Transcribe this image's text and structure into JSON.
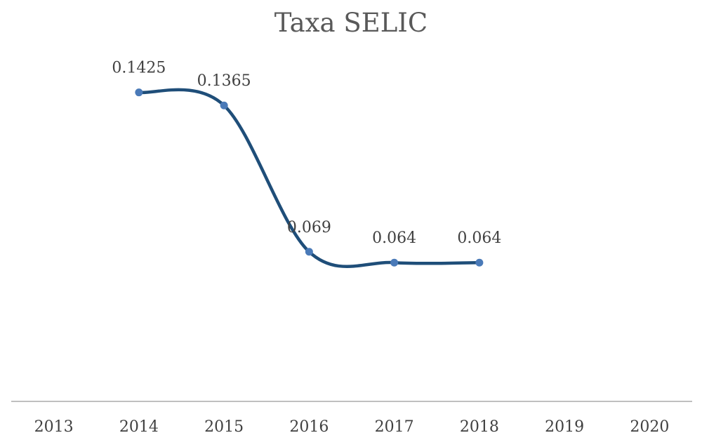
{
  "chart_data": {
    "type": "line",
    "title": "Taxa SELIC",
    "xlabel": "",
    "ylabel": "",
    "categories": [
      "2013",
      "2014",
      "2015",
      "2016",
      "2017",
      "2018",
      "2019",
      "2020"
    ],
    "series": [
      {
        "points": [
          {
            "x": "2014",
            "y": 0.1425,
            "label": "0.1425"
          },
          {
            "x": "2015",
            "y": 0.1365,
            "label": "0.1365"
          },
          {
            "x": "2016",
            "y": 0.069,
            "label": "0.069"
          },
          {
            "x": "2017",
            "y": 0.064,
            "label": "0.064"
          },
          {
            "x": "2018",
            "y": 0.064,
            "label": "0.064"
          }
        ]
      }
    ],
    "ylim": [
      0,
      0.2
    ],
    "grid": false,
    "legend": "none",
    "smooth": true,
    "colors": {
      "line": "#1f4e79",
      "marker": "#4a7ab8",
      "axis": "#bfbfbf"
    }
  }
}
